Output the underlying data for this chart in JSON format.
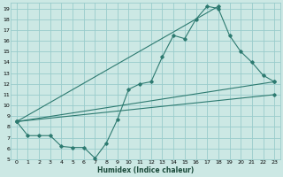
{
  "xlabel": "Humidex (Indice chaleur)",
  "bg_color": "#cce8e4",
  "grid_color": "#99cccc",
  "line_color": "#2d7a70",
  "xlim": [
    -0.5,
    23.5
  ],
  "ylim": [
    5,
    19.5
  ],
  "xticks": [
    0,
    1,
    2,
    3,
    4,
    5,
    6,
    7,
    8,
    9,
    10,
    11,
    12,
    13,
    14,
    15,
    16,
    17,
    18,
    19,
    20,
    21,
    22,
    23
  ],
  "yticks": [
    5,
    6,
    7,
    8,
    9,
    10,
    11,
    12,
    13,
    14,
    15,
    16,
    17,
    18,
    19
  ],
  "series1_x": [
    0,
    1,
    2,
    3,
    4,
    5,
    6,
    7,
    8,
    9,
    10,
    11,
    12,
    13,
    14,
    15,
    16,
    17,
    18,
    19,
    20,
    21,
    22,
    23
  ],
  "series1_y": [
    8.5,
    7.2,
    7.2,
    7.2,
    6.2,
    6.1,
    6.1,
    5.1,
    6.5,
    8.7,
    11.5,
    12.0,
    12.2,
    14.5,
    16.5,
    16.2,
    18.0,
    19.2,
    19.0,
    16.5,
    15.0,
    14.0,
    12.8,
    12.2
  ],
  "series2_x": [
    0,
    23
  ],
  "series2_y": [
    8.5,
    12.2
  ],
  "series3_x": [
    0,
    23
  ],
  "series3_y": [
    8.5,
    11.0
  ],
  "series4_x": [
    0,
    18
  ],
  "series4_y": [
    8.5,
    19.2
  ]
}
